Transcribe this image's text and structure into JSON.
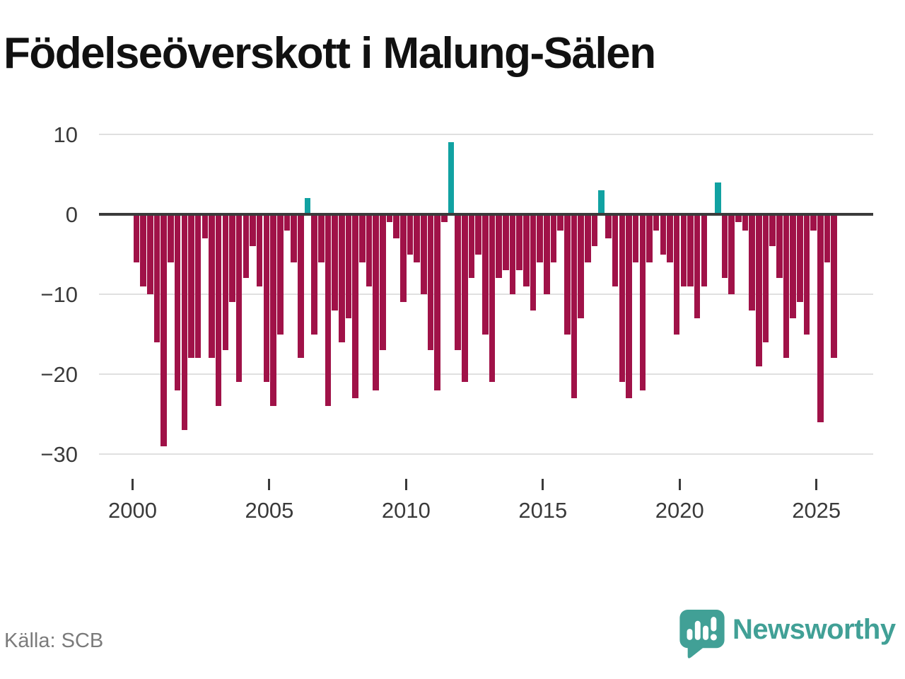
{
  "title": "Födelseöverskott i Malung-Sälen",
  "source": "Källa: SCB",
  "brand": {
    "name": "Newsworthy",
    "logo_icon": "speech-bubble-bar-chart",
    "color": "#41a096"
  },
  "chart_data": {
    "type": "bar",
    "title": "Födelseöverskott i Malung-Sälen",
    "frequency": "quarterly",
    "start_year": 2000,
    "start_quarter": 1,
    "end_year": 2025,
    "end_quarter": 3,
    "values": [
      -6,
      -9,
      -10,
      -16,
      -29,
      -6,
      -22,
      -27,
      -18,
      -18,
      -3,
      -18,
      -24,
      -17,
      -11,
      -21,
      -8,
      -4,
      -9,
      -21,
      -24,
      -15,
      -2,
      -6,
      -18,
      2,
      -15,
      -6,
      -24,
      -12,
      -16,
      -13,
      -23,
      -6,
      -9,
      -22,
      -17,
      -1,
      -3,
      -11,
      -5,
      -6,
      -10,
      -17,
      -22,
      -1,
      9,
      -17,
      -21,
      -8,
      -5,
      -15,
      -21,
      -8,
      -7,
      -10,
      -7,
      -9,
      -12,
      -6,
      -10,
      -6,
      -2,
      -15,
      -23,
      -13,
      -6,
      -4,
      3,
      -3,
      -9,
      -21,
      -23,
      -6,
      -22,
      -6,
      -2,
      -5,
      -6,
      -15,
      -9,
      -9,
      -13,
      -9,
      0,
      4,
      -8,
      -10,
      -1,
      -2,
      -12,
      -19,
      -16,
      -4,
      -8,
      -18,
      -13,
      -11,
      -15,
      -2,
      -26,
      -6,
      -18
    ],
    "yticks": [
      10,
      0,
      -10,
      -20,
      -30
    ],
    "xticks": [
      2000,
      2005,
      2010,
      2015,
      2020,
      2025
    ],
    "ylim": [
      -32,
      12
    ],
    "grid": true,
    "legend": "none",
    "negative_color": "#a01248",
    "positive_color": "#11a2a2",
    "axis_color": "#3b3b3b",
    "gridline_color": "#e0e0e0"
  }
}
